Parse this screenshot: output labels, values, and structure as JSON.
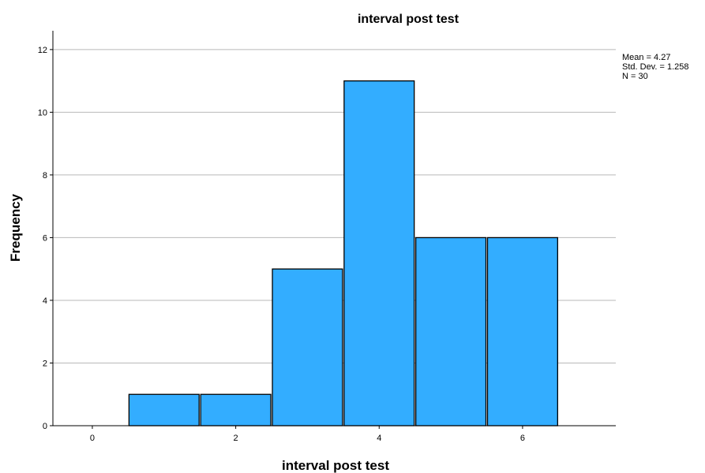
{
  "chart_data": {
    "type": "bar",
    "title": "interval post test",
    "xlabel": "interval post test",
    "ylabel": "Frequency",
    "bins": [
      {
        "x0": 0.5,
        "x1": 1.5,
        "count": 1
      },
      {
        "x0": 1.5,
        "x1": 2.5,
        "count": 1
      },
      {
        "x0": 2.5,
        "x1": 3.5,
        "count": 5
      },
      {
        "x0": 3.5,
        "x1": 4.5,
        "count": 11
      },
      {
        "x0": 4.5,
        "x1": 5.5,
        "count": 6
      },
      {
        "x0": 5.5,
        "x1": 6.5,
        "count": 6
      }
    ],
    "xlim": [
      -0.55,
      7.3
    ],
    "ylim": [
      0,
      12.6
    ],
    "xticks": [
      0,
      2,
      4,
      6
    ],
    "yticks": [
      0,
      2,
      4,
      6,
      8,
      10,
      12
    ],
    "grid": true,
    "bar_color": "#33adff",
    "stats": {
      "mean": "Mean = 4.27",
      "std_dev": "Std. Dev. = 1.258",
      "n": "N = 30"
    }
  }
}
